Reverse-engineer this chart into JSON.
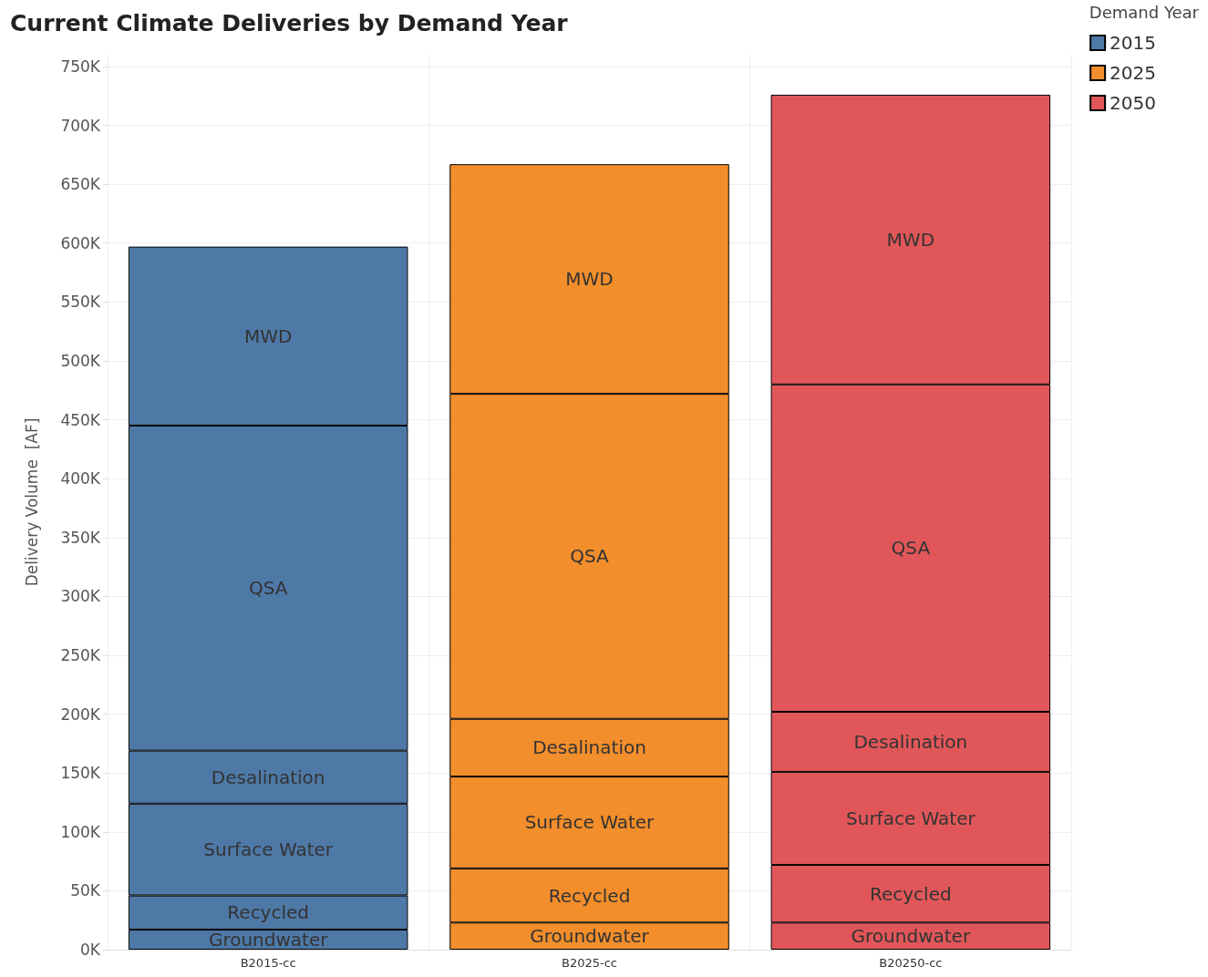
{
  "chart_data": {
    "type": "bar",
    "title": "Current Climate Deliveries by Demand Year",
    "ylabel": "Delivery Volume  [AF]",
    "legend_title": "Demand Year",
    "categories": [
      "B2015-cc",
      "B2025-cc",
      "B20250-cc"
    ],
    "stacked": true,
    "grid": true,
    "legend": "top right",
    "ylim": [
      0,
      760000
    ],
    "yticks": [
      {
        "value": 0,
        "label": "0K"
      },
      {
        "value": 50000,
        "label": "50K"
      },
      {
        "value": 100000,
        "label": "100K"
      },
      {
        "value": 150000,
        "label": "150K"
      },
      {
        "value": 200000,
        "label": "200K"
      },
      {
        "value": 250000,
        "label": "250K"
      },
      {
        "value": 300000,
        "label": "300K"
      },
      {
        "value": 350000,
        "label": "350K"
      },
      {
        "value": 400000,
        "label": "400K"
      },
      {
        "value": 450000,
        "label": "450K"
      },
      {
        "value": 500000,
        "label": "500K"
      },
      {
        "value": 550000,
        "label": "550K"
      },
      {
        "value": 600000,
        "label": "600K"
      },
      {
        "value": 650000,
        "label": "650K"
      },
      {
        "value": 700000,
        "label": "700K"
      },
      {
        "value": 750000,
        "label": "750K"
      }
    ],
    "series": [
      {
        "name": "2015",
        "color": "#4e79a7",
        "values": [
          17000,
          null,
          null
        ],
        "value_labels": [
          "Groundwater",
          null,
          null
        ]
      },
      {
        "color": "#4e79a7",
        "values": [
          29000,
          null,
          null
        ],
        "value_labels": [
          "Recycled",
          null,
          null
        ]
      },
      {
        "color": "#4e79a7",
        "values": [
          78000,
          null,
          null
        ],
        "value_labels": [
          "Surface Water",
          null,
          null
        ]
      },
      {
        "color": "#4e79a7",
        "values": [
          45000,
          null,
          null
        ],
        "value_labels": [
          "Desalination",
          null,
          null
        ]
      },
      {
        "color": "#4e79a7",
        "values": [
          276000,
          null,
          null
        ],
        "value_labels": [
          "QSA",
          null,
          null
        ]
      },
      {
        "color": "#4e79a7",
        "values": [
          152000,
          null,
          null
        ],
        "value_labels": [
          "MWD",
          null,
          null
        ]
      },
      {
        "name": "2025",
        "color": "#f28e2b",
        "values": [
          null,
          23000,
          null
        ],
        "value_labels": [
          null,
          "Groundwater",
          null
        ]
      },
      {
        "color": "#f28e2b",
        "values": [
          null,
          46000,
          null
        ],
        "value_labels": [
          null,
          "Recycled",
          null
        ]
      },
      {
        "color": "#f28e2b",
        "values": [
          null,
          78000,
          null
        ],
        "value_labels": [
          null,
          "Surface Water",
          null
        ]
      },
      {
        "color": "#f28e2b",
        "values": [
          null,
          49000,
          null
        ],
        "value_labels": [
          null,
          "Desalination",
          null
        ]
      },
      {
        "color": "#f28e2b",
        "values": [
          null,
          276000,
          null
        ],
        "value_labels": [
          null,
          "QSA",
          null
        ]
      },
      {
        "color": "#f28e2b",
        "values": [
          null,
          195000,
          null
        ],
        "value_labels": [
          null,
          "MWD",
          null
        ]
      },
      {
        "name": "2050",
        "color": "#e15759",
        "values": [
          null,
          null,
          23000
        ],
        "value_labels": [
          null,
          null,
          "Groundwater"
        ]
      },
      {
        "color": "#e15759",
        "values": [
          null,
          null,
          49000
        ],
        "value_labels": [
          null,
          null,
          "Recycled"
        ]
      },
      {
        "color": "#e15759",
        "values": [
          null,
          null,
          79000
        ],
        "value_labels": [
          null,
          null,
          "Surface Water"
        ]
      },
      {
        "color": "#e15759",
        "values": [
          null,
          null,
          51000
        ],
        "value_labels": [
          null,
          null,
          "Desalination"
        ]
      },
      {
        "color": "#e15759",
        "values": [
          null,
          null,
          278000
        ],
        "value_labels": [
          null,
          null,
          "QSA"
        ]
      },
      {
        "color": "#e15759",
        "values": [
          null,
          null,
          246000
        ],
        "value_labels": [
          null,
          null,
          "MWD"
        ]
      }
    ]
  }
}
